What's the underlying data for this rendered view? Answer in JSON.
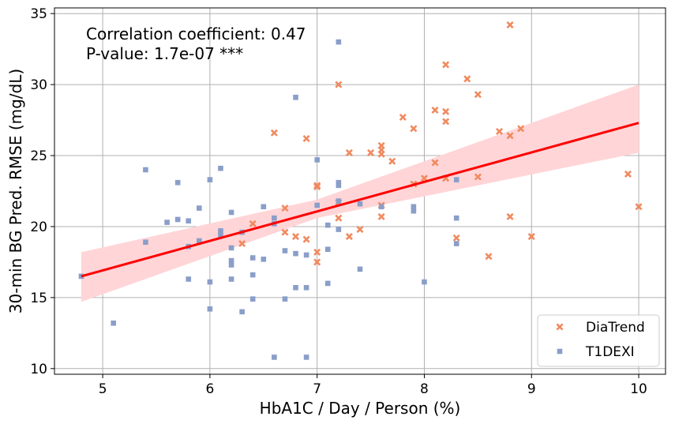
{
  "chart_data": {
    "type": "scatter",
    "xlabel": "HbA1C / Day / Person (%)",
    "ylabel": "30-min BG Pred. RMSE (mg/dL)",
    "xlim": [
      4.55,
      10.25
    ],
    "ylim": [
      9.6,
      35.4
    ],
    "x_ticks": [
      5,
      6,
      7,
      8,
      9,
      10
    ],
    "y_ticks": [
      10,
      15,
      20,
      25,
      30,
      35
    ],
    "grid": true,
    "legend_position": "bottom-right",
    "annotations": {
      "line1": "Correlation coefficient: 0.47",
      "line2": "P-value: 1.7e-07 ***"
    },
    "regression": {
      "color": "#ff0000",
      "band_color": "#ffd5d8",
      "points": [
        [
          4.8,
          16.5
        ],
        [
          10.0,
          27.3
        ]
      ],
      "band_upper": [
        [
          4.8,
          18.2
        ],
        [
          7.0,
          21.9
        ],
        [
          10.0,
          30.0
        ]
      ],
      "band_lower": [
        [
          4.8,
          14.7
        ],
        [
          7.0,
          20.6
        ],
        [
          10.0,
          25.2
        ]
      ]
    },
    "series": [
      {
        "name": "DiaTrend",
        "marker": "x",
        "color": "#f08a5f",
        "points": [
          [
            6.6,
            26.6
          ],
          [
            6.7,
            21.3
          ],
          [
            6.7,
            19.6
          ],
          [
            6.8,
            19.3
          ],
          [
            6.9,
            26.2
          ],
          [
            6.9,
            19.1
          ],
          [
            7.0,
            22.9
          ],
          [
            7.0,
            22.8
          ],
          [
            7.0,
            18.2
          ],
          [
            7.0,
            17.5
          ],
          [
            7.2,
            30.0
          ],
          [
            7.2,
            21.7
          ],
          [
            7.2,
            20.6
          ],
          [
            7.3,
            25.2
          ],
          [
            7.3,
            19.3
          ],
          [
            7.4,
            19.8
          ],
          [
            7.5,
            25.2
          ],
          [
            7.6,
            25.7
          ],
          [
            7.6,
            25.4
          ],
          [
            7.6,
            25.1
          ],
          [
            7.6,
            21.5
          ],
          [
            7.6,
            20.7
          ],
          [
            7.7,
            24.6
          ],
          [
            7.8,
            27.7
          ],
          [
            7.9,
            26.9
          ],
          [
            7.9,
            23.0
          ],
          [
            8.0,
            23.4
          ],
          [
            8.1,
            28.2
          ],
          [
            8.1,
            24.5
          ],
          [
            8.2,
            31.4
          ],
          [
            8.2,
            28.1
          ],
          [
            8.2,
            27.4
          ],
          [
            8.2,
            23.4
          ],
          [
            8.3,
            19.2
          ],
          [
            8.4,
            30.4
          ],
          [
            8.5,
            29.3
          ],
          [
            8.5,
            23.5
          ],
          [
            8.6,
            17.9
          ],
          [
            8.7,
            26.7
          ],
          [
            8.8,
            34.2
          ],
          [
            8.8,
            26.4
          ],
          [
            8.8,
            20.7
          ],
          [
            8.9,
            26.9
          ],
          [
            9.0,
            19.3
          ],
          [
            9.9,
            23.7
          ],
          [
            10.0,
            21.4
          ],
          [
            6.3,
            18.8
          ],
          [
            6.4,
            20.2
          ]
        ]
      },
      {
        "name": "T1DEXI",
        "marker": "square",
        "color": "#8a9ec9",
        "points": [
          [
            4.8,
            16.5
          ],
          [
            5.1,
            13.2
          ],
          [
            5.4,
            24.0
          ],
          [
            5.4,
            18.9
          ],
          [
            5.6,
            20.3
          ],
          [
            5.7,
            23.1
          ],
          [
            5.7,
            20.5
          ],
          [
            5.8,
            20.4
          ],
          [
            5.8,
            18.6
          ],
          [
            5.8,
            16.3
          ],
          [
            5.9,
            21.3
          ],
          [
            5.9,
            19.0
          ],
          [
            6.0,
            23.3
          ],
          [
            6.0,
            16.1
          ],
          [
            6.0,
            14.2
          ],
          [
            6.1,
            24.1
          ],
          [
            6.1,
            19.7
          ],
          [
            6.1,
            19.4
          ],
          [
            6.2,
            21.0
          ],
          [
            6.2,
            18.5
          ],
          [
            6.2,
            17.6
          ],
          [
            6.2,
            17.3
          ],
          [
            6.2,
            16.3
          ],
          [
            6.3,
            19.6
          ],
          [
            6.3,
            14.0
          ],
          [
            6.4,
            17.8
          ],
          [
            6.4,
            16.6
          ],
          [
            6.4,
            14.9
          ],
          [
            6.5,
            21.4
          ],
          [
            6.5,
            17.7
          ],
          [
            6.6,
            20.6
          ],
          [
            6.6,
            20.2
          ],
          [
            6.6,
            10.8
          ],
          [
            6.7,
            18.3
          ],
          [
            6.7,
            14.9
          ],
          [
            6.8,
            29.1
          ],
          [
            6.8,
            18.1
          ],
          [
            6.8,
            15.7
          ],
          [
            6.9,
            18.0
          ],
          [
            6.9,
            15.7
          ],
          [
            6.9,
            10.8
          ],
          [
            7.0,
            24.7
          ],
          [
            7.0,
            21.5
          ],
          [
            7.1,
            20.1
          ],
          [
            7.1,
            18.4
          ],
          [
            7.1,
            16.0
          ],
          [
            7.2,
            33.0
          ],
          [
            7.2,
            23.1
          ],
          [
            7.2,
            22.9
          ],
          [
            7.2,
            21.8
          ],
          [
            7.2,
            19.8
          ],
          [
            7.4,
            21.6
          ],
          [
            7.4,
            17.0
          ],
          [
            7.6,
            21.4
          ],
          [
            7.9,
            21.4
          ],
          [
            7.9,
            21.1
          ],
          [
            8.0,
            16.1
          ],
          [
            8.3,
            23.3
          ],
          [
            8.3,
            20.6
          ],
          [
            8.3,
            18.8
          ]
        ]
      }
    ]
  }
}
